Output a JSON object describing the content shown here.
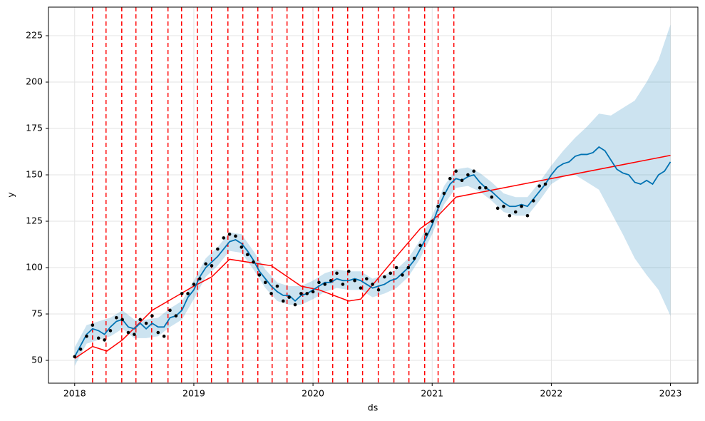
{
  "chart_data": {
    "type": "line",
    "xlabel": "ds",
    "ylabel": "y",
    "xlim": [
      2017.78,
      2023.23
    ],
    "ylim": [
      37.7,
      240.4
    ],
    "xticks": [
      2018,
      2019,
      2020,
      2021,
      2022,
      2023
    ],
    "yticks": [
      50,
      75,
      100,
      125,
      150,
      175,
      200,
      225
    ],
    "grid": true,
    "interval": {
      "color": "#0072B2",
      "x": [
        2018.0,
        2018.1,
        2018.2,
        2018.3,
        2018.4,
        2018.5,
        2018.6,
        2018.7,
        2018.8,
        2018.9,
        2019.0,
        2019.1,
        2019.2,
        2019.3,
        2019.4,
        2019.5,
        2019.6,
        2019.7,
        2019.8,
        2019.9,
        2020.0,
        2020.1,
        2020.2,
        2020.3,
        2020.4,
        2020.5,
        2020.6,
        2020.7,
        2020.8,
        2020.9,
        2021.0,
        2021.1,
        2021.2,
        2021.3,
        2021.4,
        2021.5,
        2021.6,
        2021.7,
        2021.8,
        2021.9,
        2022.0,
        2022.1,
        2022.2,
        2022.3,
        2022.4,
        2022.5,
        2022.6,
        2022.7,
        2022.8,
        2022.9,
        2023.0
      ],
      "upper": [
        57,
        69,
        71,
        73,
        77,
        72,
        72,
        73,
        78,
        82,
        93,
        105,
        111,
        119,
        118,
        109,
        99,
        92,
        90,
        90,
        93,
        97,
        99,
        98,
        98,
        94,
        96,
        99,
        105,
        115,
        128,
        144,
        153,
        154,
        151,
        146,
        140,
        138,
        138,
        146,
        155,
        163,
        170,
        176,
        183,
        182,
        186,
        190,
        200,
        212,
        231
      ],
      "lower": [
        47,
        59,
        61,
        63,
        67,
        62,
        62,
        63,
        68,
        72,
        83,
        95,
        101,
        109,
        108,
        99,
        89,
        82,
        80,
        80,
        83,
        87,
        89,
        88,
        88,
        84,
        86,
        89,
        95,
        105,
        118,
        134,
        143,
        144,
        141,
        136,
        130,
        128,
        128,
        136,
        145,
        149,
        150,
        146,
        142,
        130,
        118,
        105,
        96,
        88,
        74
      ]
    },
    "forecast": {
      "color": "#0072B2",
      "x": [
        2018.0,
        2018.05,
        2018.1,
        2018.15,
        2018.2,
        2018.25,
        2018.3,
        2018.35,
        2018.4,
        2018.45,
        2018.5,
        2018.55,
        2018.6,
        2018.65,
        2018.7,
        2018.75,
        2018.8,
        2018.85,
        2018.9,
        2018.95,
        2019.0,
        2019.05,
        2019.1,
        2019.15,
        2019.2,
        2019.25,
        2019.3,
        2019.35,
        2019.4,
        2019.45,
        2019.5,
        2019.55,
        2019.6,
        2019.65,
        2019.7,
        2019.75,
        2019.8,
        2019.85,
        2019.9,
        2019.95,
        2020.0,
        2020.05,
        2020.1,
        2020.15,
        2020.2,
        2020.25,
        2020.3,
        2020.35,
        2020.4,
        2020.45,
        2020.5,
        2020.55,
        2020.6,
        2020.65,
        2020.7,
        2020.75,
        2020.8,
        2020.85,
        2020.9,
        2020.95,
        2021.0,
        2021.05,
        2021.1,
        2021.15,
        2021.2,
        2021.25,
        2021.3,
        2021.35,
        2021.4,
        2021.45,
        2021.5,
        2021.55,
        2021.6,
        2021.65,
        2021.7,
        2021.75,
        2021.8,
        2021.85,
        2021.9,
        2021.95,
        2022.0,
        2022.05,
        2022.1,
        2022.15,
        2022.2,
        2022.25,
        2022.3,
        2022.35,
        2022.4,
        2022.45,
        2022.5,
        2022.55,
        2022.6,
        2022.65,
        2022.7,
        2022.75,
        2022.8,
        2022.85,
        2022.9,
        2022.95,
        2023.0
      ],
      "values": [
        52,
        58,
        64,
        67,
        66,
        64,
        68,
        71,
        72,
        68,
        67,
        70,
        67,
        70,
        68,
        68,
        73,
        74,
        77,
        84,
        88,
        95,
        100,
        103,
        106,
        110,
        114,
        115,
        113,
        109,
        104,
        98,
        94,
        90,
        87,
        85,
        85,
        82,
        85,
        86,
        88,
        90,
        92,
        92,
        94,
        93,
        93,
        94,
        93,
        91,
        89,
        90,
        91,
        93,
        94,
        97,
        100,
        104,
        110,
        116,
        123,
        132,
        139,
        145,
        148,
        147,
        149,
        150,
        146,
        143,
        141,
        138,
        135,
        133,
        133,
        134,
        133,
        137,
        141,
        145,
        150,
        154,
        156,
        157,
        160,
        161,
        161,
        162,
        165,
        163,
        158,
        153,
        151,
        150,
        146,
        145,
        147,
        145,
        150,
        152,
        157
      ]
    },
    "observed": {
      "color": "#000000",
      "x": [
        2018.0,
        2018.05,
        2018.1,
        2018.15,
        2018.2,
        2018.25,
        2018.3,
        2018.35,
        2018.4,
        2018.45,
        2018.5,
        2018.55,
        2018.6,
        2018.65,
        2018.7,
        2018.75,
        2018.8,
        2018.85,
        2018.9,
        2018.95,
        2019.0,
        2019.05,
        2019.1,
        2019.15,
        2019.2,
        2019.25,
        2019.3,
        2019.35,
        2019.4,
        2019.45,
        2019.5,
        2019.55,
        2019.6,
        2019.65,
        2019.7,
        2019.75,
        2019.8,
        2019.85,
        2019.9,
        2019.95,
        2020.0,
        2020.05,
        2020.1,
        2020.15,
        2020.2,
        2020.25,
        2020.3,
        2020.35,
        2020.4,
        2020.45,
        2020.5,
        2020.55,
        2020.6,
        2020.65,
        2020.7,
        2020.75,
        2020.8,
        2020.85,
        2020.9,
        2020.95,
        2021.0,
        2021.05,
        2021.1,
        2021.15,
        2021.2,
        2021.25,
        2021.3,
        2021.35,
        2021.4,
        2021.45,
        2021.5,
        2021.55,
        2021.6,
        2021.65,
        2021.7,
        2021.75,
        2021.8,
        2021.85,
        2021.9,
        2021.95
      ],
      "values": [
        52,
        56,
        63,
        69,
        62,
        61,
        66,
        73,
        72,
        65,
        64,
        72,
        70,
        74,
        65,
        63,
        77,
        74,
        86,
        86,
        91,
        94,
        102,
        101,
        110,
        116,
        118,
        117,
        111,
        107,
        103,
        96,
        92,
        86,
        90,
        82,
        84,
        80,
        86,
        86,
        87,
        92,
        91,
        93,
        97,
        91,
        98,
        93,
        89,
        94,
        91,
        88,
        95,
        97,
        100,
        96,
        100,
        105,
        112,
        118,
        125,
        133,
        140,
        148,
        152,
        147,
        150,
        152,
        143,
        143,
        138,
        132,
        133,
        128,
        130,
        133,
        128,
        136,
        144,
        145
      ]
    },
    "trend": {
      "color": "#ff0000",
      "x": [
        2018.0,
        2018.15,
        2018.27,
        2018.4,
        2018.65,
        2019.0,
        2019.15,
        2019.3,
        2019.65,
        2019.9,
        2020.05,
        2020.3,
        2020.4,
        2020.7,
        2020.9,
        2021.05,
        2021.2,
        2023.0
      ],
      "values": [
        51,
        57.5,
        55,
        61,
        77,
        90,
        95,
        104.5,
        101,
        90,
        88,
        82,
        83,
        106,
        121,
        128,
        138,
        160.5
      ]
    },
    "changepoints": {
      "color": "#ff0000",
      "x": [
        2018.15,
        2018.263,
        2018.395,
        2018.514,
        2018.646,
        2018.783,
        2018.897,
        2019.029,
        2019.148,
        2019.286,
        2019.411,
        2019.537,
        2019.657,
        2019.782,
        2019.914,
        2020.045,
        2020.165,
        2020.291,
        2020.416,
        2020.548,
        2020.679,
        2020.805,
        2020.937,
        2021.05,
        2021.182
      ]
    }
  }
}
